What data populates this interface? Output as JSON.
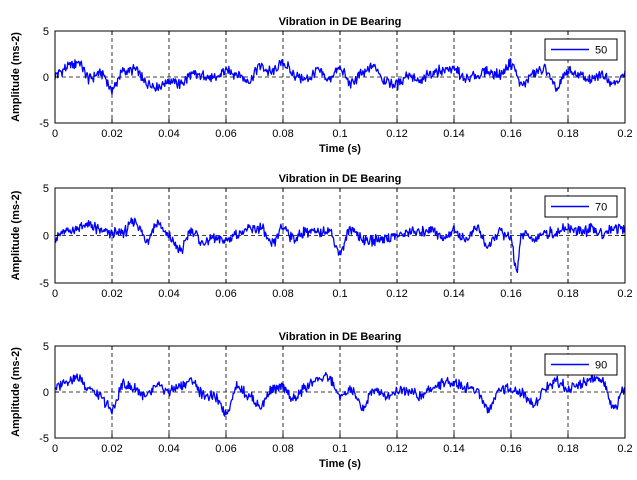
{
  "chart_data": [
    {
      "type": "line",
      "title": "Vibration in DE Bearing",
      "xlabel": "Time (s)",
      "ylabel": "Amplitude (ms-2)",
      "xlim": [
        0,
        0.2
      ],
      "ylim": [
        -5,
        5
      ],
      "xticks": [
        0,
        0.02,
        0.04,
        0.06,
        0.08,
        0.1,
        0.12,
        0.14,
        0.16,
        0.18,
        0.2
      ],
      "xtick_labels": [
        "0",
        "0.02",
        "0.04",
        "0.06",
        "0.08",
        "0.1",
        "0.12",
        "0.14",
        "0.16",
        "0.18",
        "0.2"
      ],
      "yticks": [
        -5,
        0,
        5
      ],
      "ytick_labels": [
        "-5",
        "0",
        "5"
      ],
      "grid": "dashed",
      "legend_position": "top-right",
      "series": [
        {
          "name": "50",
          "color": "#0000ff",
          "x": [
            0,
            0.004,
            0.008,
            0.012,
            0.016,
            0.02,
            0.024,
            0.028,
            0.032,
            0.036,
            0.04,
            0.044,
            0.048,
            0.052,
            0.056,
            0.06,
            0.064,
            0.068,
            0.072,
            0.076,
            0.08,
            0.084,
            0.088,
            0.092,
            0.096,
            0.1,
            0.104,
            0.108,
            0.112,
            0.116,
            0.12,
            0.124,
            0.128,
            0.132,
            0.136,
            0.14,
            0.144,
            0.148,
            0.152,
            0.156,
            0.16,
            0.164,
            0.168,
            0.172,
            0.176,
            0.18,
            0.184,
            0.188,
            0.192,
            0.196,
            0.2
          ],
          "y": [
            0.2,
            1.0,
            1.6,
            -0.2,
            0.5,
            -1.3,
            0.6,
            0.8,
            -0.6,
            -1.0,
            -0.4,
            -0.8,
            0.2,
            0.1,
            -0.2,
            0.7,
            0.3,
            -0.4,
            1.2,
            0.5,
            1.6,
            0.2,
            -0.3,
            0.6,
            -0.2,
            0.8,
            -0.7,
            0.4,
            1.1,
            -0.4,
            -0.8,
            0.3,
            -0.6,
            0.5,
            0.8,
            0.9,
            -0.3,
            0.2,
            0.6,
            0.2,
            1.4,
            -0.9,
            0.4,
            0.8,
            -1.3,
            0.6,
            0.2,
            -0.4,
            0.3,
            -0.6,
            0.2
          ]
        }
      ]
    },
    {
      "type": "line",
      "title": "Vibration in DE Bearing",
      "xlabel": "",
      "ylabel": "Amplitude (ms-2)",
      "xlim": [
        0,
        0.2
      ],
      "ylim": [
        -5,
        5
      ],
      "xticks": [
        0,
        0.02,
        0.04,
        0.06,
        0.08,
        0.1,
        0.12,
        0.14,
        0.16,
        0.18,
        0.2
      ],
      "xtick_labels": [
        "0",
        "0.02",
        "0.04",
        "0.06",
        "0.08",
        "0.1",
        "0.12",
        "0.14",
        "0.16",
        "0.18",
        "0.2"
      ],
      "yticks": [
        -5,
        0,
        5
      ],
      "ytick_labels": [
        "-5",
        "0",
        "5"
      ],
      "grid": "dashed",
      "legend_position": "top-right",
      "series": [
        {
          "name": "70",
          "color": "#0000ff",
          "x": [
            0,
            0.004,
            0.008,
            0.012,
            0.016,
            0.02,
            0.024,
            0.028,
            0.032,
            0.036,
            0.04,
            0.044,
            0.048,
            0.052,
            0.056,
            0.06,
            0.064,
            0.068,
            0.072,
            0.076,
            0.08,
            0.084,
            0.088,
            0.092,
            0.096,
            0.1,
            0.104,
            0.108,
            0.112,
            0.116,
            0.12,
            0.124,
            0.128,
            0.132,
            0.136,
            0.14,
            0.144,
            0.148,
            0.152,
            0.156,
            0.16,
            0.162,
            0.164,
            0.168,
            0.172,
            0.176,
            0.18,
            0.184,
            0.188,
            0.192,
            0.196,
            0.2
          ],
          "y": [
            -0.2,
            0.4,
            0.8,
            1.1,
            0.5,
            0.2,
            0.3,
            1.6,
            -0.5,
            1.3,
            -0.2,
            -1.6,
            0.6,
            -0.8,
            -0.3,
            -0.5,
            0.2,
            0.6,
            0.8,
            -1.0,
            0.9,
            -0.4,
            0.5,
            0.2,
            0.6,
            -1.8,
            0.8,
            -0.4,
            -0.5,
            -0.2,
            -0.1,
            0.4,
            0.3,
            0.8,
            -0.3,
            0.5,
            -0.4,
            0.8,
            -1.2,
            0.4,
            -0.3,
            -3.6,
            0.2,
            -0.4,
            0.3,
            0.2,
            0.8,
            0.4,
            0.6,
            0.2,
            0.9,
            0.6
          ]
        }
      ]
    },
    {
      "type": "line",
      "title": "Vibration in DE Bearing",
      "xlabel": "Time (s)",
      "ylabel": "Amplitude (ms-2)",
      "xlim": [
        0,
        0.2
      ],
      "ylim": [
        -5,
        5
      ],
      "xticks": [
        0,
        0.02,
        0.04,
        0.06,
        0.08,
        0.1,
        0.12,
        0.14,
        0.16,
        0.18,
        0.2
      ],
      "xtick_labels": [
        "0",
        "0.02",
        "0.04",
        "0.06",
        "0.08",
        "0.1",
        "0.12",
        "0.14",
        "0.16",
        "0.18",
        "0.2"
      ],
      "yticks": [
        -5,
        0,
        5
      ],
      "ytick_labels": [
        "-5",
        "0",
        "5"
      ],
      "grid": "dashed",
      "legend_position": "top-right",
      "series": [
        {
          "name": "90",
          "color": "#0000ff",
          "x": [
            0,
            0.004,
            0.008,
            0.012,
            0.016,
            0.02,
            0.024,
            0.028,
            0.032,
            0.036,
            0.04,
            0.044,
            0.048,
            0.052,
            0.056,
            0.06,
            0.064,
            0.068,
            0.072,
            0.076,
            0.08,
            0.084,
            0.088,
            0.092,
            0.096,
            0.1,
            0.104,
            0.108,
            0.112,
            0.116,
            0.12,
            0.124,
            0.128,
            0.132,
            0.136,
            0.14,
            0.144,
            0.148,
            0.152,
            0.156,
            0.16,
            0.164,
            0.168,
            0.172,
            0.176,
            0.18,
            0.184,
            0.188,
            0.192,
            0.196,
            0.2
          ],
          "y": [
            0.5,
            1.2,
            1.6,
            0.4,
            -0.6,
            -2.0,
            0.8,
            0.3,
            -0.5,
            0.6,
            0.1,
            0.6,
            1.2,
            -0.3,
            -0.6,
            -2.2,
            0.6,
            -0.4,
            -1.6,
            0.2,
            0.4,
            -0.8,
            0.5,
            1.4,
            1.6,
            -0.5,
            0.2,
            -1.8,
            0.3,
            -0.4,
            0.1,
            0.3,
            -0.6,
            0.4,
            0.9,
            1.1,
            0.5,
            0.2,
            -1.9,
            0.4,
            0.3,
            -0.2,
            -1.4,
            0.5,
            1.2,
            0.4,
            0.9,
            1.5,
            1.1,
            -1.8,
            0.4
          ]
        }
      ]
    }
  ]
}
